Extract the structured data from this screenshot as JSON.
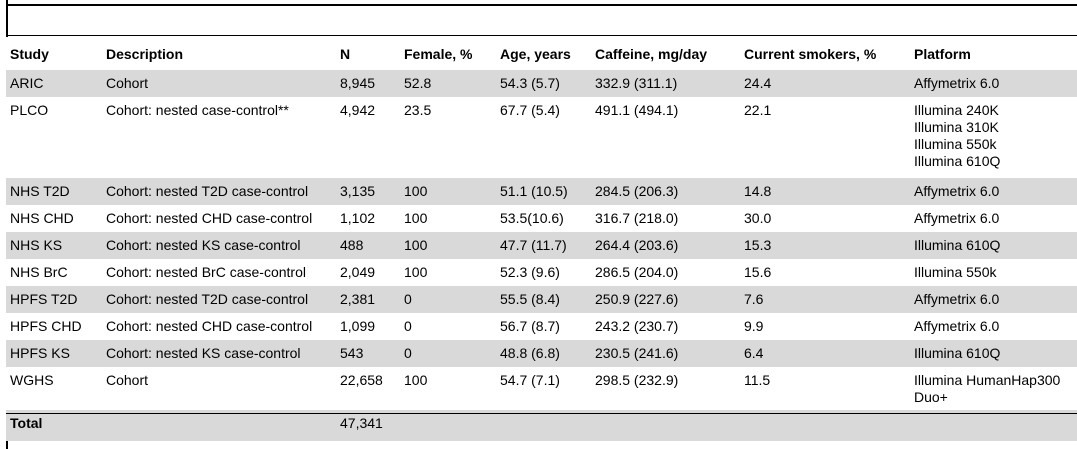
{
  "table": {
    "columns": [
      "Study",
      "Description",
      "N",
      "Female, %",
      "Age, years",
      "Caffeine, mg/day",
      "Current smokers, %",
      "Platform"
    ],
    "rows": [
      {
        "study": "ARIC",
        "description": "Cohort",
        "n": "8,945",
        "female": "52.8",
        "age": "54.3 (5.7)",
        "caffeine": "332.9 (311.1)",
        "smokers": "24.4",
        "platform": "Affymetrix 6.0"
      },
      {
        "study": "PLCO",
        "description": "Cohort: nested case-control**",
        "n": "4,942",
        "female": "23.5",
        "age": "67.7 (5.4)",
        "caffeine": "491.1 (494.1)",
        "smokers": "22.1",
        "platform": "Illumina 240K\nIllumina 310K\nIllumina 550k\nIllumina 610Q"
      },
      {
        "study": "NHS T2D",
        "description": "Cohort: nested T2D case-control",
        "n": "3,135",
        "female": "100",
        "age": "51.1 (10.5)",
        "caffeine": "284.5 (206.3)",
        "smokers": "14.8",
        "platform": "Affymetrix 6.0"
      },
      {
        "study": "NHS CHD",
        "description": "Cohort: nested CHD case-control",
        "n": "1,102",
        "female": "100",
        "age": "53.5(10.6)",
        "caffeine": "316.7 (218.0)",
        "smokers": "30.0",
        "platform": "Affymetrix 6.0"
      },
      {
        "study": "NHS KS",
        "description": "Cohort: nested KS case-control",
        "n": "488",
        "female": "100",
        "age": "47.7 (11.7)",
        "caffeine": "264.4 (203.6)",
        "smokers": "15.3",
        "platform": "Illumina 610Q"
      },
      {
        "study": "NHS BrC",
        "description": "Cohort: nested BrC case-control",
        "n": "2,049",
        "female": "100",
        "age": "52.3 (9.6)",
        "caffeine": "286.5 (204.0)",
        "smokers": "15.6",
        "platform": "Illumina 550k"
      },
      {
        "study": "HPFS T2D",
        "description": "Cohort: nested T2D case-control",
        "n": "2,381",
        "female": "0",
        "age": "55.5 (8.4)",
        "caffeine": "250.9 (227.6)",
        "smokers": "7.6",
        "platform": "Affymetrix 6.0"
      },
      {
        "study": "HPFS CHD",
        "description": "Cohort: nested CHD case-control",
        "n": "1,099",
        "female": "0",
        "age": "56.7 (8.7)",
        "caffeine": "243.2 (230.7)",
        "smokers": "9.9",
        "platform": "Affymetrix 6.0"
      },
      {
        "study": "HPFS KS",
        "description": "Cohort: nested KS case-control",
        "n": "543",
        "female": "0",
        "age": "48.8 (6.8)",
        "caffeine": "230.5 (241.6)",
        "smokers": "6.4",
        "platform": "Illumina 610Q"
      },
      {
        "study": "WGHS",
        "description": "Cohort",
        "n": "22,658",
        "female": "100",
        "age": "54.7 (7.1)",
        "caffeine": "298.5 (232.9)",
        "smokers": "11.5",
        "platform": "Illumina HumanHap300\nDuo+"
      }
    ],
    "total": {
      "label": "Total",
      "n": "47,341"
    }
  },
  "colors": {
    "shade": "#d9d9d9",
    "rule": "#000000"
  }
}
